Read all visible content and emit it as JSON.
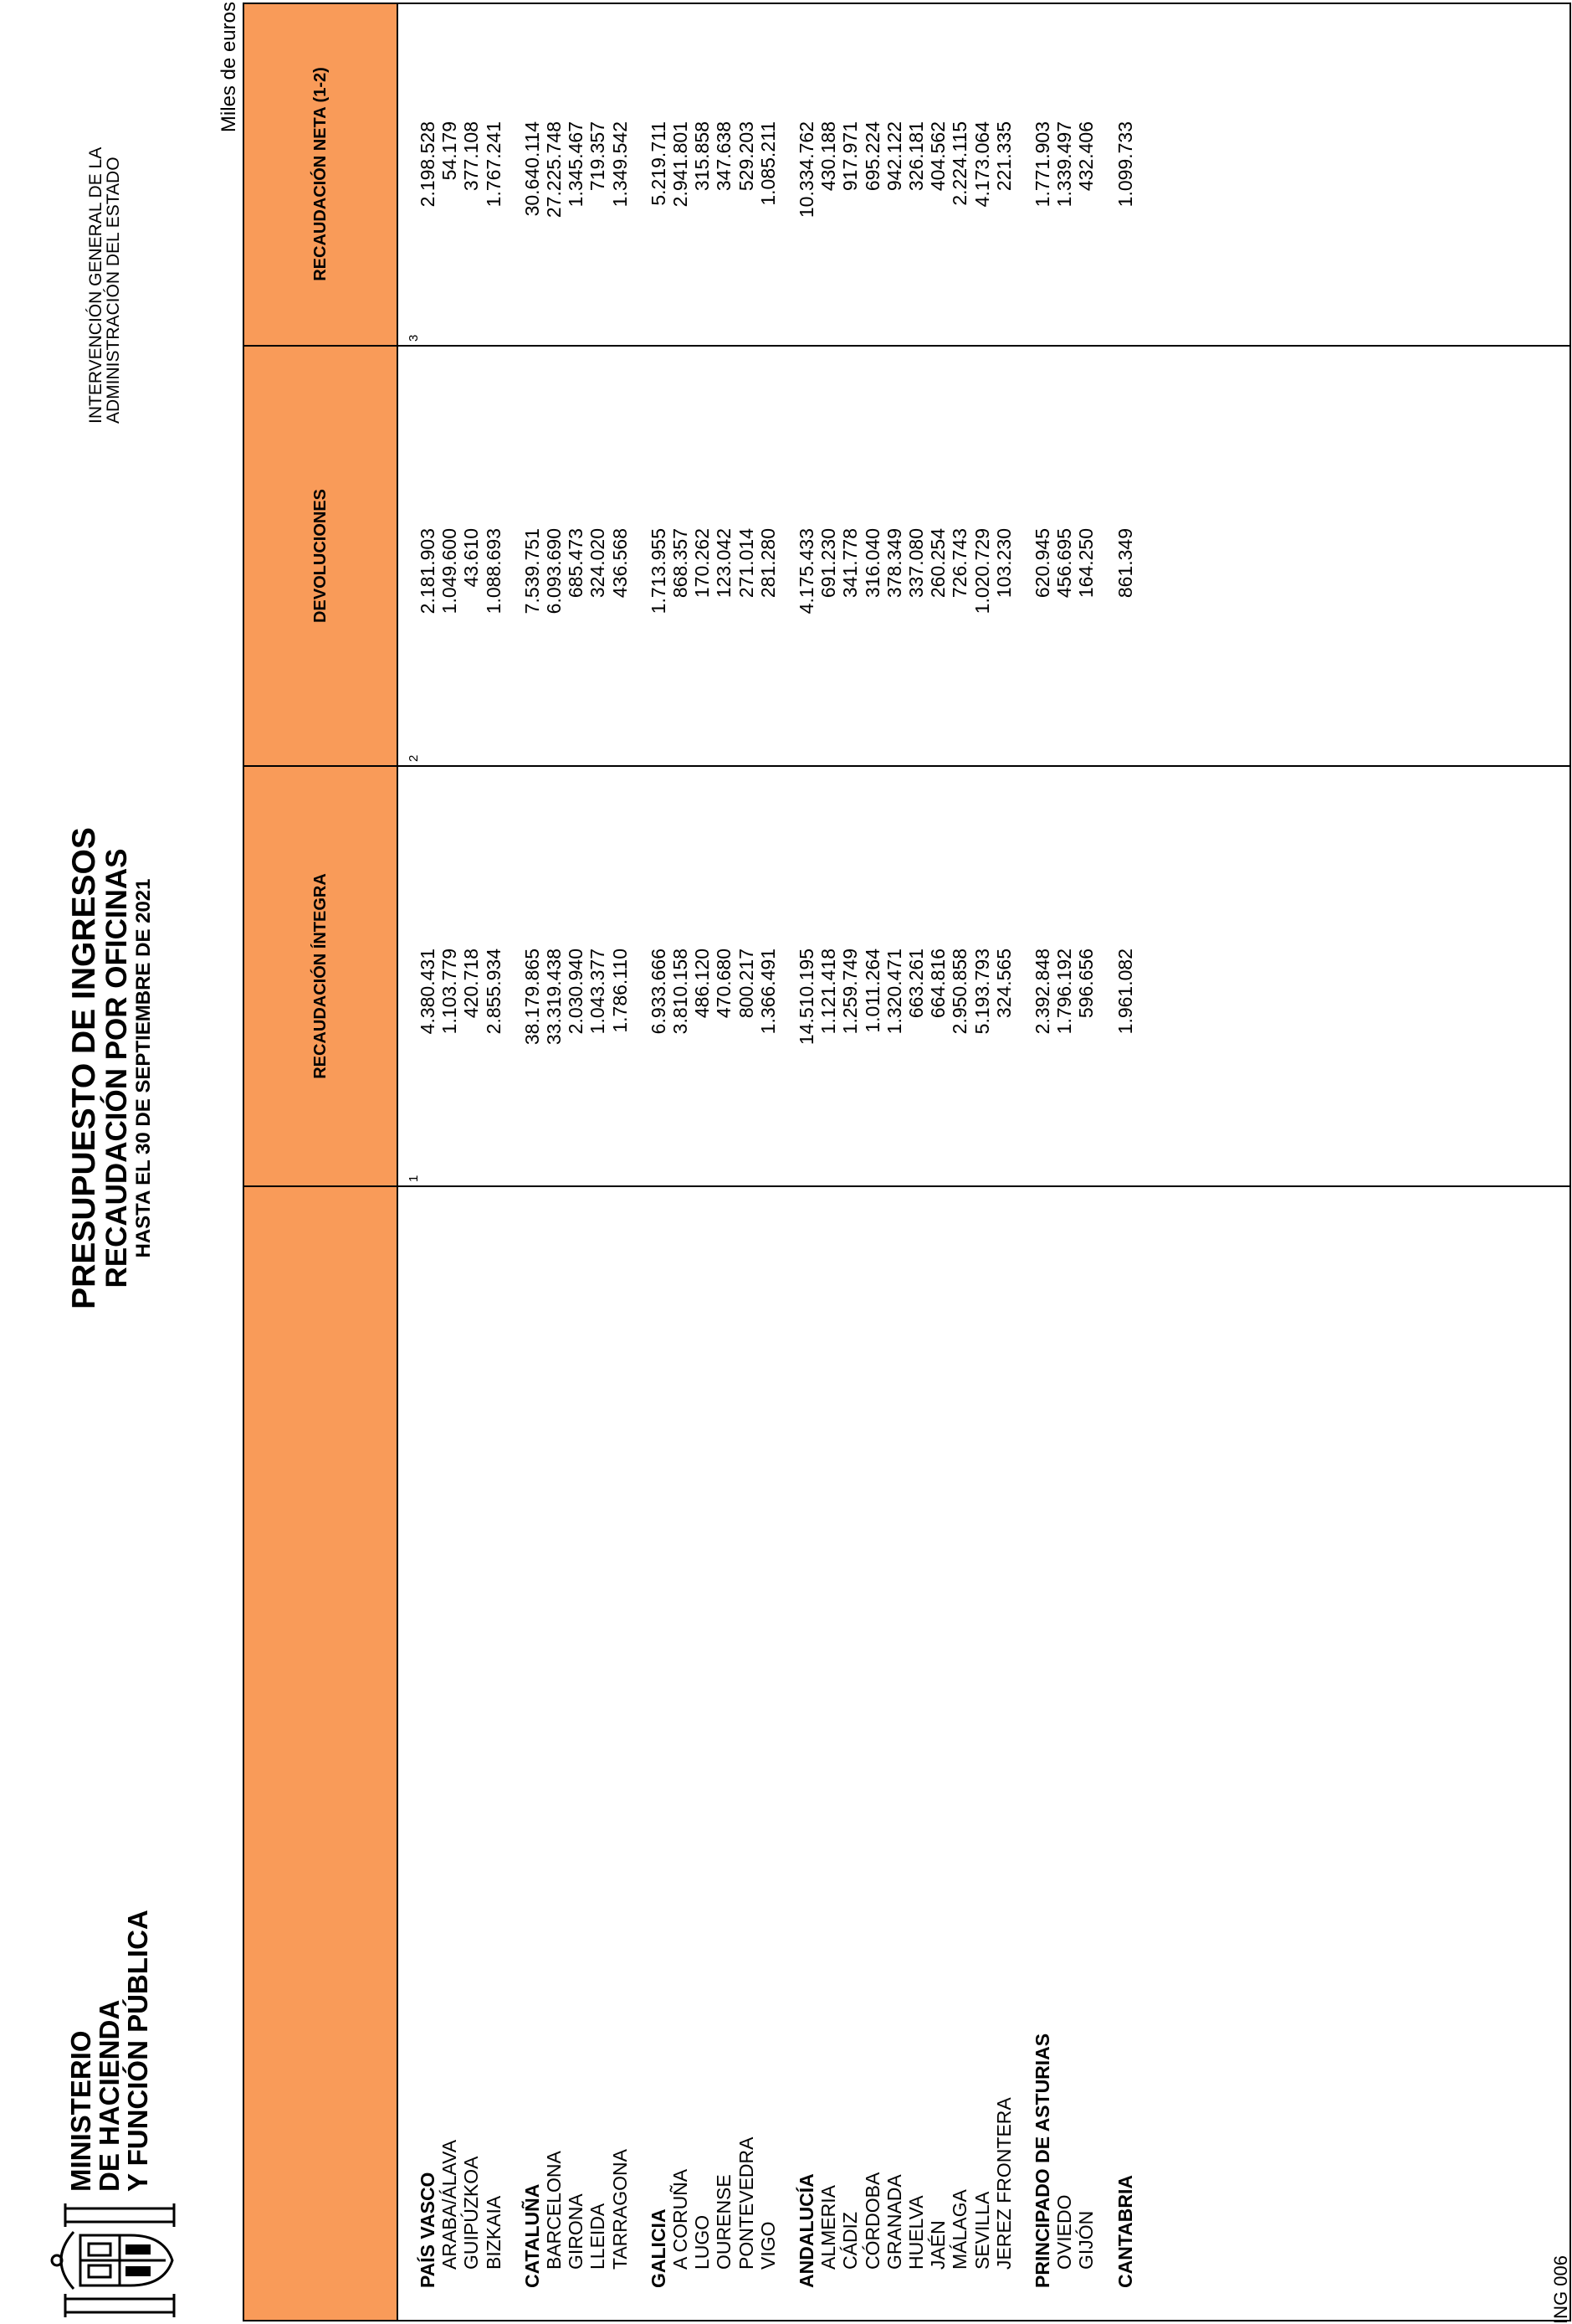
{
  "header": {
    "ministry_lines": [
      "MINISTERIO",
      "DE HACIENDA",
      "Y FUNCIÓN PÚBLICA"
    ],
    "title": "PRESUPUESTO DE INGRESOS",
    "subtitle": "RECAUDACIÓN POR OFICINAS",
    "date_line": "HASTA EL 30 DE SEPTIEMBRE DE 2021",
    "intervention_lines": [
      "INTERVENCIÓN GENERAL DE LA",
      "ADMINISTRACIÓN DEL ESTADO"
    ],
    "unit": "Miles de euros"
  },
  "table": {
    "columns": [
      {
        "label": "RECAUDACIÓN ÍNTEGRA",
        "num": "1"
      },
      {
        "label": "DEVOLUCIONES",
        "num": "2"
      },
      {
        "label": "RECAUDACIÓN NETA (1-2)",
        "num": "3"
      }
    ],
    "rows": [
      {
        "name": "PAÍS VASCO",
        "type": "head",
        "v": [
          "4.380.431",
          "2.181.903",
          "2.198.528"
        ]
      },
      {
        "name": "ARABA/ÁLAVA",
        "type": "sub",
        "v": [
          "1.103.779",
          "1.049.600",
          "54.179"
        ]
      },
      {
        "name": "GUIPÚZKOA",
        "type": "sub",
        "v": [
          "420.718",
          "43.610",
          "377.108"
        ]
      },
      {
        "name": "BIZKAIA",
        "type": "sub",
        "v": [
          "2.855.934",
          "1.088.693",
          "1.767.241"
        ]
      },
      {
        "name": "",
        "type": "gap",
        "v": [
          "",
          "",
          ""
        ]
      },
      {
        "name": "CATALUÑA",
        "type": "head",
        "v": [
          "38.179.865",
          "7.539.751",
          "30.640.114"
        ]
      },
      {
        "name": "BARCELONA",
        "type": "sub",
        "v": [
          "33.319.438",
          "6.093.690",
          "27.225.748"
        ]
      },
      {
        "name": "GIRONA",
        "type": "sub",
        "v": [
          "2.030.940",
          "685.473",
          "1.345.467"
        ]
      },
      {
        "name": "LLEIDA",
        "type": "sub",
        "v": [
          "1.043.377",
          "324.020",
          "719.357"
        ]
      },
      {
        "name": "TARRAGONA",
        "type": "sub",
        "v": [
          "1.786.110",
          "436.568",
          "1.349.542"
        ]
      },
      {
        "name": "",
        "type": "gap",
        "v": [
          "",
          "",
          ""
        ]
      },
      {
        "name": "GALICIA",
        "type": "head",
        "v": [
          "6.933.666",
          "1.713.955",
          "5.219.711"
        ]
      },
      {
        "name": "A CORUÑA",
        "type": "sub",
        "v": [
          "3.810.158",
          "868.357",
          "2.941.801"
        ]
      },
      {
        "name": "LUGO",
        "type": "sub",
        "v": [
          "486.120",
          "170.262",
          "315.858"
        ]
      },
      {
        "name": "OURENSE",
        "type": "sub",
        "v": [
          "470.680",
          "123.042",
          "347.638"
        ]
      },
      {
        "name": "PONTEVEDRA",
        "type": "sub",
        "v": [
          "800.217",
          "271.014",
          "529.203"
        ]
      },
      {
        "name": "VIGO",
        "type": "sub",
        "v": [
          "1.366.491",
          "281.280",
          "1.085.211"
        ]
      },
      {
        "name": "",
        "type": "gap",
        "v": [
          "",
          "",
          ""
        ]
      },
      {
        "name": "ANDALUCÍA",
        "type": "head",
        "v": [
          "14.510.195",
          "4.175.433",
          "10.334.762"
        ]
      },
      {
        "name": "ALMERIA",
        "type": "sub",
        "v": [
          "1.121.418",
          "691.230",
          "430.188"
        ]
      },
      {
        "name": "CÁDIZ",
        "type": "sub",
        "v": [
          "1.259.749",
          "341.778",
          "917.971"
        ]
      },
      {
        "name": "CÓRDOBA",
        "type": "sub",
        "v": [
          "1.011.264",
          "316.040",
          "695.224"
        ]
      },
      {
        "name": "GRANADA",
        "type": "sub",
        "v": [
          "1.320.471",
          "378.349",
          "942.122"
        ]
      },
      {
        "name": "HUELVA",
        "type": "sub",
        "v": [
          "663.261",
          "337.080",
          "326.181"
        ]
      },
      {
        "name": "JAÉN",
        "type": "sub",
        "v": [
          "664.816",
          "260.254",
          "404.562"
        ]
      },
      {
        "name": "MÁLAGA",
        "type": "sub",
        "v": [
          "2.950.858",
          "726.743",
          "2.224.115"
        ]
      },
      {
        "name": "SEVILLA",
        "type": "sub",
        "v": [
          "5.193.793",
          "1.020.729",
          "4.173.064"
        ]
      },
      {
        "name": "JEREZ FRONTERA",
        "type": "sub",
        "v": [
          "324.565",
          "103.230",
          "221.335"
        ]
      },
      {
        "name": "",
        "type": "gap",
        "v": [
          "",
          "",
          ""
        ]
      },
      {
        "name": "PRINCIPADO DE ASTURIAS",
        "type": "head",
        "v": [
          "2.392.848",
          "620.945",
          "1.771.903"
        ]
      },
      {
        "name": "OVIEDO",
        "type": "sub",
        "v": [
          "1.796.192",
          "456.695",
          "1.339.497"
        ]
      },
      {
        "name": "GIJÓN",
        "type": "sub",
        "v": [
          "596.656",
          "164.250",
          "432.406"
        ]
      },
      {
        "name": "",
        "type": "gap",
        "v": [
          "",
          "",
          ""
        ]
      },
      {
        "name": "CANTABRIA",
        "type": "head",
        "v": [
          "1.961.082",
          "861.349",
          "1.099.733"
        ]
      }
    ]
  },
  "footer": {
    "code": "ING 006"
  }
}
